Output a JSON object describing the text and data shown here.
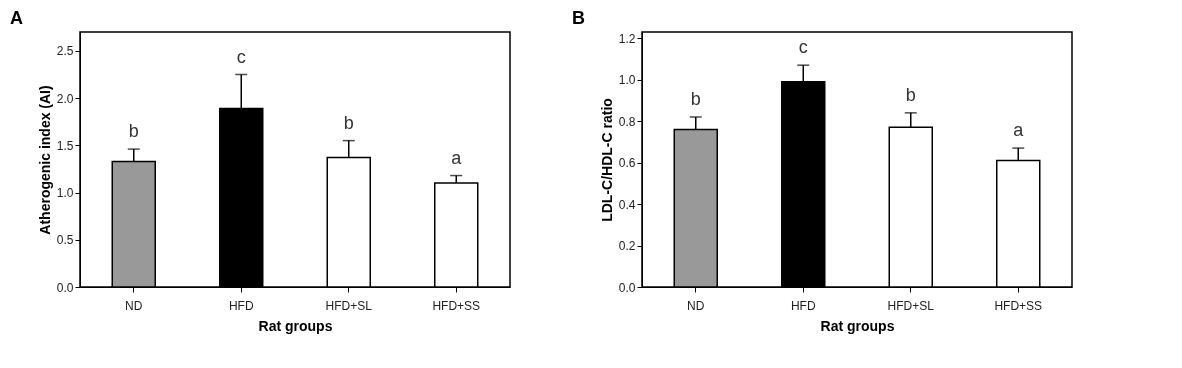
{
  "chart_data": [
    {
      "type": "bar",
      "title": "A",
      "xlabel": "Rat groups",
      "ylabel": "Atherogenic index (AI)",
      "categories": [
        "ND",
        "HFD",
        "HFD+SL",
        "HFD+SS"
      ],
      "values": [
        1.33,
        1.89,
        1.37,
        1.1
      ],
      "colors": [
        "#999999",
        "#000000",
        "#ffffff",
        "#ffffff"
      ],
      "errors": [
        [
          1.33,
          1.46
        ],
        [
          1.89,
          2.25
        ],
        [
          1.37,
          1.55
        ],
        [
          1.1,
          1.18
        ]
      ],
      "ylim": [
        0,
        2.7
      ],
      "yticks": [
        {
          "value": 0,
          "label": "0.0"
        },
        0.5,
        {
          "value": 1,
          "label": "1.0"
        },
        1.5,
        {
          "value": 2,
          "label": "2.0"
        },
        2.5
      ],
      "grid": false,
      "annotations": [
        "b",
        "c",
        "b",
        "a"
      ]
    },
    {
      "type": "bar",
      "title": "B",
      "xlabel": "Rat groups",
      "ylabel": "LDL-C/HDL-C ratio",
      "categories": [
        "ND",
        "HFD",
        "HFD+SL",
        "HFD+SS"
      ],
      "values": [
        0.76,
        0.99,
        0.77,
        0.61
      ],
      "colors": [
        "#999999",
        "#000000",
        "#ffffff",
        "#ffffff"
      ],
      "errors": [
        [
          0.76,
          0.82
        ],
        [
          0.99,
          1.07
        ],
        [
          0.77,
          0.84
        ],
        [
          0.61,
          0.67
        ]
      ],
      "ylim": [
        0,
        1.23
      ],
      "yticks": [
        {
          "value": 0,
          "label": "0.0"
        },
        0.2,
        0.4,
        0.6,
        0.8,
        {
          "value": 1,
          "label": "1.0"
        },
        1.2
      ],
      "grid": false,
      "annotations": [
        "b",
        "c",
        "b",
        "a"
      ]
    }
  ]
}
